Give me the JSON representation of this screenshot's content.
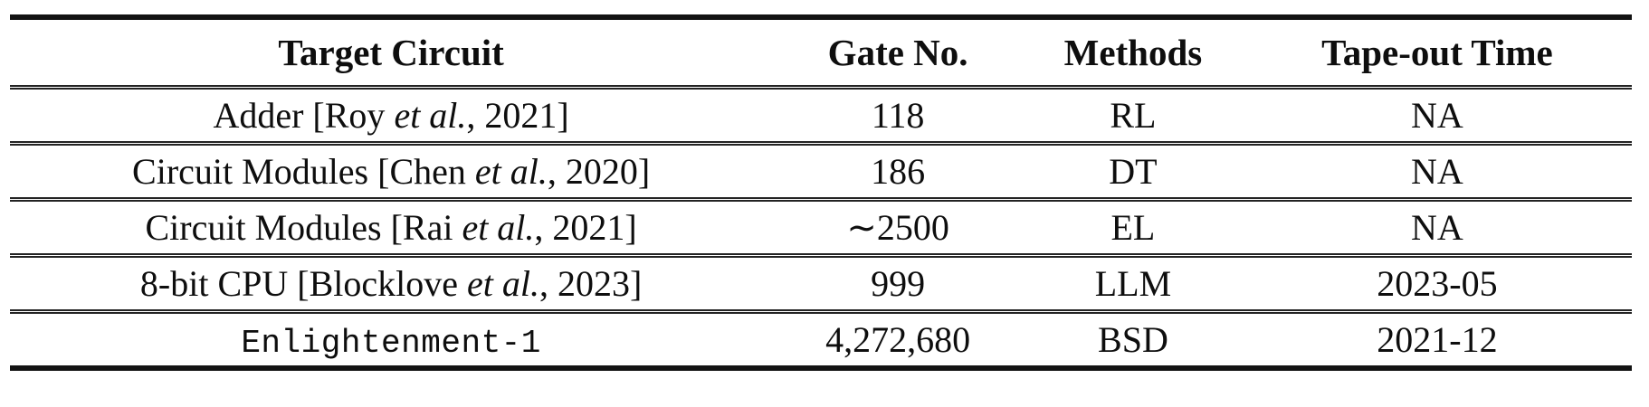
{
  "page": {
    "background_color": "#ffffff",
    "text_color": "#0e0e0e",
    "rule_color": "#131313",
    "separator_color": "#232323"
  },
  "table": {
    "headers": [
      "Target Circuit",
      "Gate No.",
      "Methods",
      "Tape-out Time"
    ],
    "rows": [
      {
        "circuit_pre": "Adder [Roy ",
        "circuit_italic": "et al.",
        "circuit_post": ", 2021]",
        "circuit_mono": false,
        "gate_no": "118",
        "method": "RL",
        "tapeout_time": "NA"
      },
      {
        "circuit_pre": "Circuit Modules [Chen ",
        "circuit_italic": "et al.",
        "circuit_post": ", 2020]",
        "circuit_mono": false,
        "gate_no": "186",
        "method": "DT",
        "tapeout_time": "NA"
      },
      {
        "circuit_pre": "Circuit Modules [Rai ",
        "circuit_italic": "et al.",
        "circuit_post": ", 2021]",
        "circuit_mono": false,
        "gate_no": "∼2500",
        "method": "EL",
        "tapeout_time": "NA"
      },
      {
        "circuit_pre": "8-bit CPU [Blocklove ",
        "circuit_italic": "et al.",
        "circuit_post": ", 2023]",
        "circuit_mono": false,
        "gate_no": "999",
        "method": "LLM",
        "tapeout_time": "2023-05"
      },
      {
        "circuit_pre": "Enlightenment-1",
        "circuit_italic": "",
        "circuit_post": "",
        "circuit_mono": true,
        "gate_no": "4,272,680",
        "method": "BSD",
        "tapeout_time": "2021-12"
      }
    ]
  }
}
